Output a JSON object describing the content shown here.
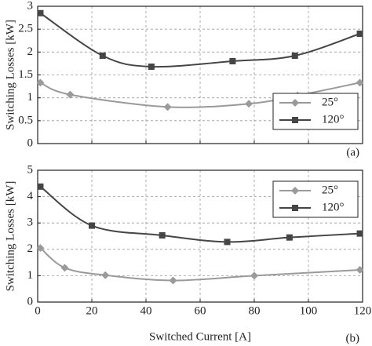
{
  "chart_data": [
    {
      "type": "line",
      "ylabel": "Switching Losses [kW]",
      "annotation": "(a)",
      "xlim": [
        0,
        120
      ],
      "xticks": [
        0,
        20,
        40,
        60,
        80,
        100,
        120
      ],
      "show_xtick_labels": false,
      "ylim": [
        0,
        3
      ],
      "yticks": [
        0,
        0.5,
        1,
        1.5,
        2,
        2.5,
        3
      ],
      "grid": true,
      "legend": "lower right",
      "series": [
        {
          "name": "25°",
          "color": "#9a9a9a",
          "marker": "diamond",
          "x": [
            1,
            12,
            48,
            78,
            96,
            119
          ],
          "values": [
            1.33,
            1.07,
            0.8,
            0.87,
            1.05,
            1.33
          ]
        },
        {
          "name": "120°",
          "color": "#454545",
          "marker": "square",
          "x": [
            1,
            24,
            42,
            72,
            95,
            119
          ],
          "values": [
            2.85,
            1.92,
            1.68,
            1.8,
            1.92,
            2.4
          ]
        }
      ]
    },
    {
      "type": "line",
      "ylabel": "Switching Losses [kW]",
      "xlabel": "Switched Current [A]",
      "annotation": "(b)",
      "xlim": [
        0,
        120
      ],
      "xticks": [
        0,
        20,
        40,
        60,
        80,
        100,
        120
      ],
      "show_xtick_labels": true,
      "ylim": [
        0,
        5
      ],
      "yticks": [
        0,
        1,
        2,
        3,
        4,
        5
      ],
      "grid": true,
      "legend": "upper right",
      "series": [
        {
          "name": "25°",
          "color": "#9a9a9a",
          "marker": "diamond",
          "x": [
            1,
            10,
            25,
            50,
            80,
            119
          ],
          "values": [
            2.05,
            1.3,
            1.02,
            0.82,
            1.0,
            1.22
          ]
        },
        {
          "name": "120°",
          "color": "#454545",
          "marker": "square",
          "x": [
            1,
            20,
            46,
            70,
            93,
            119
          ],
          "values": [
            4.38,
            2.9,
            2.53,
            2.28,
            2.45,
            2.6
          ]
        }
      ]
    }
  ]
}
